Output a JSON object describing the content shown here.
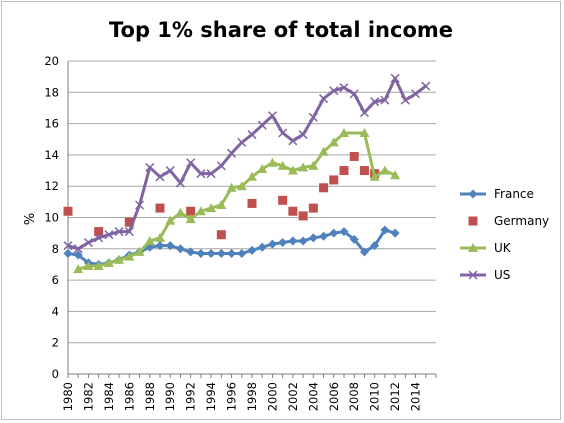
{
  "chart_data": {
    "type": "line",
    "title": "Top 1% share of total income",
    "ylabel": "%",
    "xlabel": "",
    "ylim": [
      0,
      20
    ],
    "xlim": [
      1980,
      2016
    ],
    "yticks": [
      0,
      2,
      4,
      6,
      8,
      10,
      12,
      14,
      16,
      18,
      20
    ],
    "xticks": [
      "1980",
      "1982",
      "1984",
      "1986",
      "1988",
      "1990",
      "1992",
      "1994",
      "1996",
      "1998",
      "2000",
      "2002",
      "2004",
      "2006",
      "2008",
      "2010",
      "2012",
      "2014"
    ],
    "grid": "horizontal",
    "legend_position": "right",
    "series": [
      {
        "name": "France",
        "color": "#4f81bd",
        "marker": "diamond",
        "line": true,
        "points": [
          [
            1980,
            7.7
          ],
          [
            1981,
            7.6
          ],
          [
            1982,
            7.1
          ],
          [
            1983,
            7.0
          ],
          [
            1984,
            7.1
          ],
          [
            1985,
            7.3
          ],
          [
            1986,
            7.6
          ],
          [
            1987,
            7.8
          ],
          [
            1988,
            8.1
          ],
          [
            1989,
            8.2
          ],
          [
            1990,
            8.2
          ],
          [
            1991,
            8.0
          ],
          [
            1992,
            7.8
          ],
          [
            1993,
            7.7
          ],
          [
            1994,
            7.7
          ],
          [
            1995,
            7.7
          ],
          [
            1996,
            7.7
          ],
          [
            1997,
            7.7
          ],
          [
            1998,
            7.9
          ],
          [
            1999,
            8.1
          ],
          [
            2000,
            8.3
          ],
          [
            2001,
            8.4
          ],
          [
            2002,
            8.5
          ],
          [
            2003,
            8.5
          ],
          [
            2004,
            8.7
          ],
          [
            2005,
            8.8
          ],
          [
            2006,
            9.0
          ],
          [
            2007,
            9.1
          ],
          [
            2008,
            8.6
          ],
          [
            2009,
            7.8
          ],
          [
            2010,
            8.2
          ],
          [
            2011,
            9.2
          ],
          [
            2012,
            9.0
          ]
        ]
      },
      {
        "name": "Germany",
        "color": "#c0504d",
        "marker": "square",
        "line": false,
        "points": [
          [
            1980,
            10.4
          ],
          [
            1983,
            9.1
          ],
          [
            1986,
            9.7
          ],
          [
            1989,
            10.6
          ],
          [
            1992,
            10.4
          ],
          [
            1995,
            8.9
          ],
          [
            1998,
            10.9
          ],
          [
            2001,
            11.1
          ],
          [
            2002,
            10.4
          ],
          [
            2003,
            10.1
          ],
          [
            2004,
            10.6
          ],
          [
            2005,
            11.9
          ],
          [
            2006,
            12.4
          ],
          [
            2007,
            13.0
          ],
          [
            2008,
            13.9
          ],
          [
            2009,
            13.0
          ],
          [
            2010,
            12.8
          ]
        ]
      },
      {
        "name": "UK",
        "color": "#9bbb59",
        "marker": "triangle",
        "line": true,
        "points": [
          [
            1981,
            6.7
          ],
          [
            1982,
            6.9
          ],
          [
            1983,
            6.9
          ],
          [
            1984,
            7.1
          ],
          [
            1985,
            7.3
          ],
          [
            1986,
            7.5
          ],
          [
            1987,
            7.8
          ],
          [
            1988,
            8.5
          ],
          [
            1989,
            8.7
          ],
          [
            1990,
            9.8
          ],
          [
            1991,
            10.3
          ],
          [
            1992,
            9.9
          ],
          [
            1993,
            10.4
          ],
          [
            1994,
            10.6
          ],
          [
            1995,
            10.8
          ],
          [
            1996,
            11.9
          ],
          [
            1997,
            12.0
          ],
          [
            1998,
            12.6
          ],
          [
            1999,
            13.1
          ],
          [
            2000,
            13.5
          ],
          [
            2001,
            13.3
          ],
          [
            2002,
            13.0
          ],
          [
            2003,
            13.2
          ],
          [
            2004,
            13.3
          ],
          [
            2005,
            14.2
          ],
          [
            2006,
            14.8
          ],
          [
            2007,
            15.4
          ],
          null,
          [
            2009,
            15.4
          ],
          [
            2010,
            12.6
          ],
          [
            2011,
            13.0
          ],
          [
            2012,
            12.7
          ]
        ]
      },
      {
        "name": "US",
        "color": "#8064a2",
        "marker": "x",
        "line": true,
        "points": [
          [
            1980,
            8.2
          ],
          [
            1981,
            8.0
          ],
          [
            1982,
            8.4
          ],
          [
            1983,
            8.7
          ],
          [
            1984,
            8.9
          ],
          [
            1985,
            9.1
          ],
          [
            1986,
            9.1
          ],
          [
            1987,
            10.8
          ],
          [
            1988,
            13.2
          ],
          [
            1989,
            12.6
          ],
          [
            1990,
            13.0
          ],
          [
            1991,
            12.2
          ],
          [
            1992,
            13.5
          ],
          [
            1993,
            12.8
          ],
          [
            1994,
            12.8
          ],
          [
            1995,
            13.3
          ],
          [
            1996,
            14.1
          ],
          [
            1997,
            14.8
          ],
          [
            1998,
            15.3
          ],
          [
            1999,
            15.9
          ],
          [
            2000,
            16.5
          ],
          [
            2001,
            15.4
          ],
          [
            2002,
            14.9
          ],
          [
            2003,
            15.3
          ],
          [
            2004,
            16.4
          ],
          [
            2005,
            17.6
          ],
          [
            2006,
            18.1
          ],
          [
            2007,
            18.3
          ],
          [
            2008,
            17.9
          ],
          [
            2009,
            16.7
          ],
          [
            2010,
            17.4
          ],
          [
            2011,
            17.5
          ],
          [
            2012,
            18.9
          ],
          [
            2013,
            17.5
          ],
          [
            2014,
            17.9
          ],
          [
            2015,
            18.4
          ]
        ]
      }
    ]
  }
}
